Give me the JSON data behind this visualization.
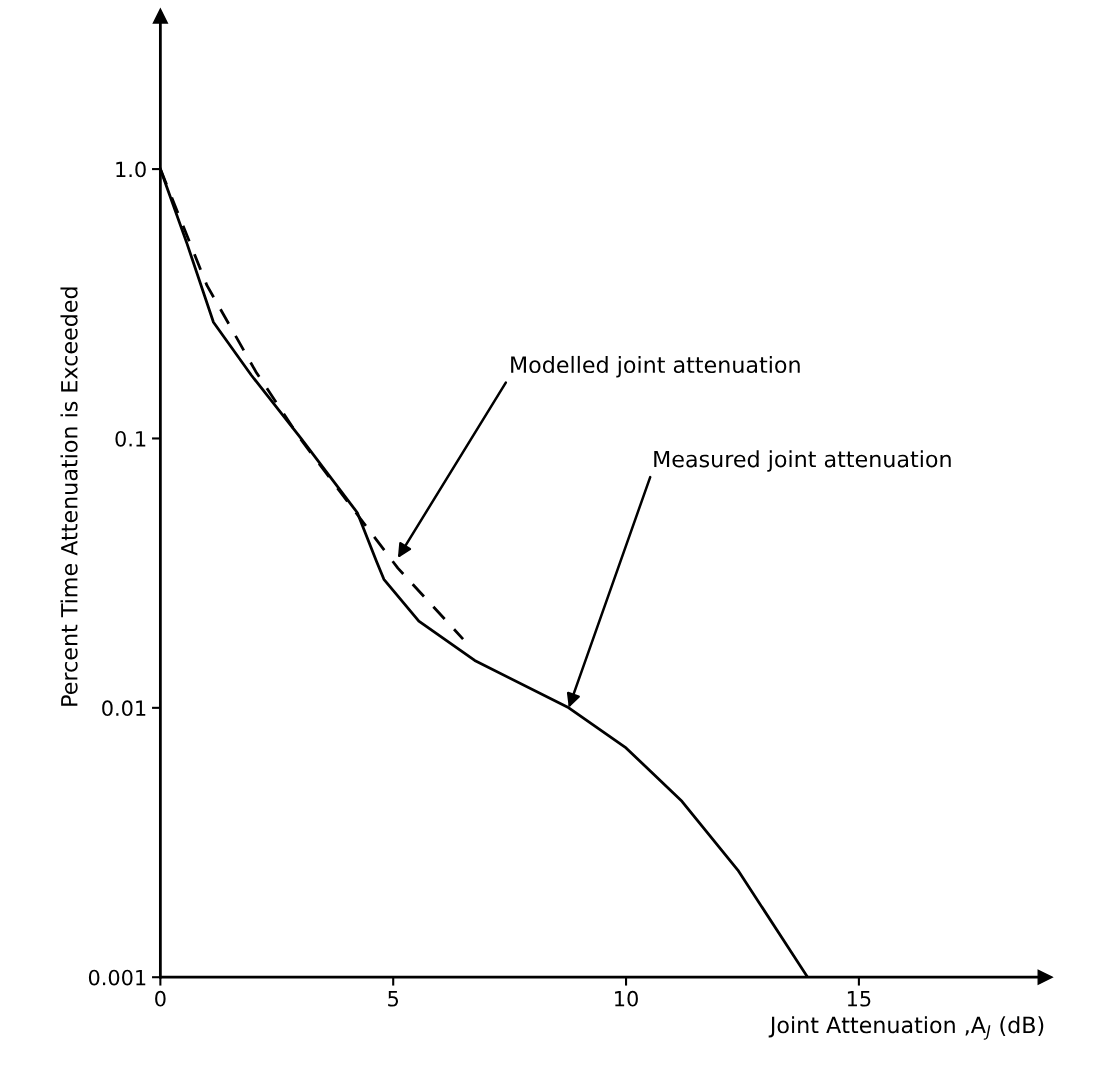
{
  "chart_data": {
    "type": "line",
    "xlabel": "Joint Attenuation ,A$_{J}$ (dB)",
    "ylabel": "Percent Time Attenuation is Exceeded",
    "log": "y",
    "xlim": [
      0,
      19
    ],
    "ylim": [
      0.001,
      3.7
    ],
    "xticks": [
      0,
      5,
      10,
      15
    ],
    "yticks": [
      0.001,
      0.01,
      0.1,
      {
        "value": 1,
        "label": "1.0"
      }
    ],
    "grid": false,
    "legend": false,
    "marker": "none",
    "series": [
      {
        "color": "#000000",
        "line_style": "solid",
        "x": [
          0,
          0.57,
          1.14,
          1.95,
          3.02,
          4.23,
          4.64,
          4.8,
          5.55,
          6.75,
          8.77,
          10.0,
          11.2,
          12.4,
          13.9
        ],
        "values": [
          1.0,
          0.53,
          0.27,
          0.172,
          0.1,
          0.053,
          0.035,
          0.03,
          0.021,
          0.015,
          0.01,
          0.0071,
          0.0045,
          0.0025,
          0.001
        ]
      },
      {
        "color": "#000000",
        "line_style": "dashed",
        "x": [
          0,
          1.0,
          2.05,
          3.0,
          4.2,
          5.1,
          6.5
        ],
        "values": [
          1.0,
          0.37,
          0.177,
          0.1,
          0.053,
          0.033,
          0.018
        ]
      }
    ],
    "annotations": [
      {
        "text": "Modelled joint attenuation",
        "x": 5.1,
        "y": 0.036
      },
      {
        "text": "Measured joint attenuation",
        "x": 8.77,
        "y": 0.01
      }
    ]
  }
}
